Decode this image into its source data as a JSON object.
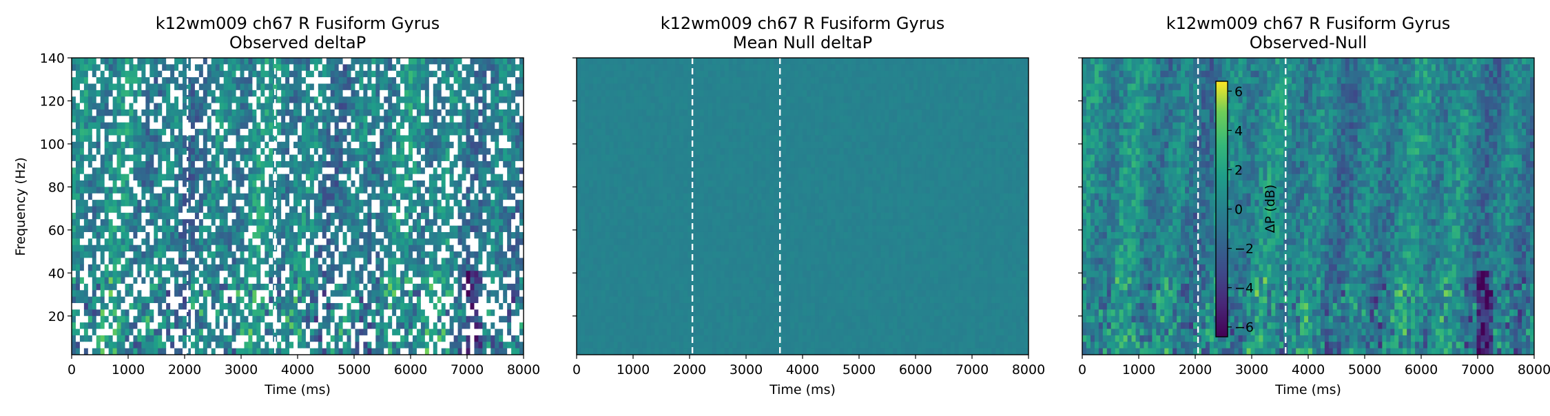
{
  "chart_data": [
    {
      "type": "heatmap",
      "title": "k12wm009 ch67 R Fusiform Gyrus",
      "subtitle": "Observed deltaP",
      "xlabel": "Time (ms)",
      "ylabel": "Frequency (Hz)",
      "xlim": [
        0,
        8000
      ],
      "ylim": [
        2,
        140
      ],
      "xticks": [
        "0",
        "1000",
        "2000",
        "3000",
        "4000",
        "5000",
        "6000",
        "7000",
        "8000"
      ],
      "yticks": [
        "20",
        "40",
        "60",
        "80",
        "100",
        "120",
        "140"
      ],
      "vlines_ms": [
        2050,
        3600
      ],
      "masked": true
    },
    {
      "type": "heatmap",
      "title": "k12wm009 ch67 R Fusiform Gyrus",
      "subtitle": "Mean Null deltaP",
      "xlabel": "Time (ms)",
      "ylabel": "",
      "xlim": [
        0,
        8000
      ],
      "ylim": [
        2,
        140
      ],
      "xticks": [
        "0",
        "1000",
        "2000",
        "3000",
        "4000",
        "5000",
        "6000",
        "7000",
        "8000"
      ],
      "yticks": [],
      "vlines_ms": [
        2050,
        3600
      ],
      "masked": false
    },
    {
      "type": "heatmap",
      "title": "k12wm009 ch67 R Fusiform Gyrus",
      "subtitle": "Observed-Null",
      "xlabel": "Time (ms)",
      "ylabel": "",
      "xlim": [
        0,
        8000
      ],
      "ylim": [
        2,
        140
      ],
      "xticks": [
        "0",
        "1000",
        "2000",
        "3000",
        "4000",
        "5000",
        "6000",
        "7000",
        "8000"
      ],
      "yticks": [],
      "vlines_ms": [
        2050,
        3600
      ],
      "masked": false,
      "colorbar": {
        "label": "ΔP (dB)",
        "range": [
          -6.5,
          6.5
        ],
        "ticks": [
          "6",
          "4",
          "2",
          "0",
          "−2",
          "−4",
          "−6"
        ],
        "colormap": "viridis"
      }
    }
  ]
}
